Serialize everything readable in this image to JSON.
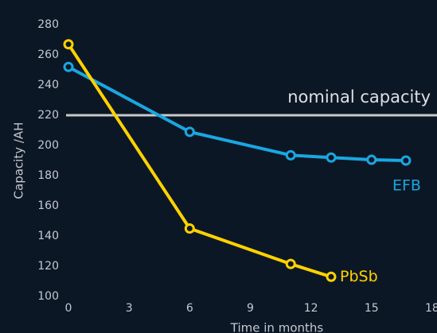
{
  "chart_data": {
    "type": "line",
    "x_label": "Time in months",
    "y_label": "Capacity /AH",
    "xlim": [
      0,
      18.2
    ],
    "xticks": [
      0,
      3,
      6,
      9,
      12,
      15,
      18
    ],
    "ylim": [
      100,
      280
    ],
    "yticks": [
      100,
      120,
      140,
      160,
      180,
      200,
      220,
      240,
      260,
      280
    ],
    "reference_line": {
      "label": "nominal capacity",
      "value": 220,
      "color": "#c8c8c8"
    },
    "series": [
      {
        "name": "EFB",
        "color": "#1aa7e0",
        "x": [
          0,
          6,
          11,
          13,
          15,
          16.7
        ],
        "values": [
          252,
          209,
          193.5,
          192,
          190.5,
          190
        ]
      },
      {
        "name": "PbSb",
        "color": "#ffd200",
        "x": [
          0,
          6,
          11,
          13
        ],
        "values": [
          267,
          145,
          121.5,
          113
        ]
      }
    ]
  }
}
